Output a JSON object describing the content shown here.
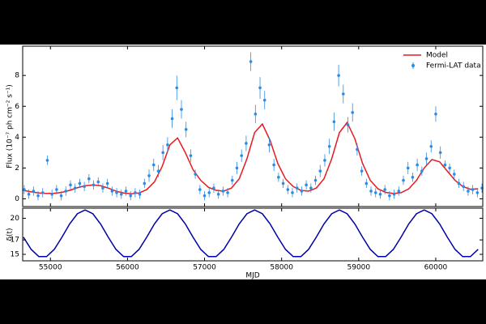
{
  "chart_data": [
    {
      "type": "line",
      "ylabel": "Flux (10⁻⁷ ph cm⁻² s⁻¹)",
      "xlim": [
        54640,
        60610
      ],
      "xticks": [
        55000,
        56000,
        57000,
        58000,
        59000,
        60000
      ],
      "show_xtick_labels": false,
      "ylim": [
        -0.5,
        9.9
      ],
      "yticks": [
        0,
        2,
        4,
        6,
        8
      ],
      "legend": "upper right",
      "series": [
        {
          "name": "Model",
          "type": "line",
          "color": "#e8191f",
          "x": [
            54650,
            54750,
            54850,
            54950,
            55050,
            55150,
            55250,
            55350,
            55450,
            55550,
            55650,
            55750,
            55850,
            55950,
            56050,
            56150,
            56250,
            56350,
            56450,
            56550,
            56650,
            56750,
            56850,
            56950,
            57050,
            57150,
            57250,
            57350,
            57450,
            57550,
            57650,
            57750,
            57850,
            57950,
            58050,
            58150,
            58250,
            58350,
            58450,
            58550,
            58650,
            58750,
            58850,
            58950,
            59050,
            59150,
            59250,
            59350,
            59450,
            59550,
            59650,
            59750,
            59850,
            59950,
            60050,
            60150,
            60250,
            60350,
            60450,
            60550
          ],
          "values": [
            0.55,
            0.45,
            0.38,
            0.35,
            0.36,
            0.42,
            0.55,
            0.72,
            0.85,
            0.9,
            0.85,
            0.7,
            0.5,
            0.38,
            0.33,
            0.38,
            0.6,
            1.1,
            2.1,
            3.5,
            3.95,
            3.0,
            1.9,
            1.2,
            0.75,
            0.55,
            0.5,
            0.7,
            1.3,
            2.6,
            4.3,
            4.85,
            3.8,
            2.3,
            1.3,
            0.8,
            0.55,
            0.5,
            0.7,
            1.3,
            2.6,
            4.3,
            4.95,
            3.9,
            2.3,
            1.2,
            0.65,
            0.42,
            0.35,
            0.4,
            0.65,
            1.2,
            2.0,
            2.55,
            2.4,
            1.8,
            1.2,
            0.8,
            0.62,
            0.65
          ]
        },
        {
          "name": "Fermi-LAT data",
          "type": "errorbar",
          "color": "#2b8ce6",
          "x": [
            54660,
            54720,
            54780,
            54840,
            54900,
            54960,
            55020,
            55080,
            55140,
            55200,
            55260,
            55320,
            55380,
            55440,
            55500,
            55560,
            55620,
            55680,
            55740,
            55800,
            55860,
            55920,
            55980,
            56040,
            56100,
            56160,
            56220,
            56280,
            56340,
            56400,
            56460,
            56520,
            56580,
            56640,
            56700,
            56760,
            56820,
            56880,
            56940,
            57000,
            57060,
            57120,
            57180,
            57240,
            57300,
            57360,
            57420,
            57480,
            57540,
            57600,
            57660,
            57720,
            57780,
            57840,
            57900,
            57960,
            58020,
            58080,
            58140,
            58200,
            58260,
            58320,
            58380,
            58440,
            58500,
            58560,
            58620,
            58680,
            58740,
            58800,
            58860,
            58920,
            58980,
            59040,
            59100,
            59160,
            59220,
            59280,
            59340,
            59400,
            59460,
            59520,
            59580,
            59640,
            59700,
            59760,
            59820,
            59880,
            59940,
            60000,
            60060,
            60120,
            60180,
            60240,
            60300,
            60360,
            60420,
            60480,
            60540,
            60600
          ],
          "values": [
            0.6,
            0.3,
            0.5,
            0.2,
            0.4,
            2.5,
            0.3,
            0.6,
            0.2,
            0.5,
            0.9,
            0.7,
            1.0,
            0.8,
            1.3,
            0.9,
            1.1,
            0.7,
            1.0,
            0.5,
            0.4,
            0.3,
            0.5,
            0.2,
            0.4,
            0.3,
            1.0,
            1.5,
            2.2,
            1.8,
            3.0,
            3.5,
            5.2,
            7.2,
            5.8,
            4.5,
            2.8,
            1.6,
            0.6,
            0.2,
            0.4,
            0.7,
            0.3,
            0.5,
            0.4,
            1.2,
            2.0,
            2.8,
            3.6,
            8.9,
            5.5,
            7.2,
            6.4,
            3.5,
            2.2,
            1.4,
            1.0,
            0.6,
            0.4,
            0.7,
            0.5,
            0.9,
            0.7,
            1.2,
            1.8,
            2.5,
            3.4,
            5.0,
            8.0,
            6.8,
            4.8,
            5.6,
            3.2,
            1.8,
            1.0,
            0.5,
            0.4,
            0.3,
            0.6,
            0.2,
            0.3,
            0.5,
            1.2,
            2.0,
            1.4,
            2.2,
            1.8,
            2.6,
            3.4,
            5.5,
            3.0,
            2.2,
            2.0,
            1.6,
            1.0,
            0.8,
            0.5,
            0.6,
            0.4,
            0.7
          ],
          "errors": [
            0.3,
            0.3,
            0.3,
            0.3,
            0.3,
            0.3,
            0.3,
            0.3,
            0.3,
            0.3,
            0.3,
            0.3,
            0.3,
            0.3,
            0.3,
            0.3,
            0.3,
            0.3,
            0.3,
            0.3,
            0.3,
            0.3,
            0.3,
            0.3,
            0.3,
            0.3,
            0.3,
            0.4,
            0.4,
            0.4,
            0.5,
            0.5,
            0.6,
            0.8,
            0.6,
            0.5,
            0.4,
            0.3,
            0.3,
            0.3,
            0.3,
            0.3,
            0.3,
            0.3,
            0.3,
            0.3,
            0.4,
            0.4,
            0.5,
            0.6,
            0.6,
            0.7,
            0.6,
            0.5,
            0.4,
            0.3,
            0.3,
            0.3,
            0.3,
            0.3,
            0.3,
            0.3,
            0.3,
            0.3,
            0.4,
            0.4,
            0.5,
            0.6,
            0.7,
            0.6,
            0.5,
            0.6,
            0.4,
            0.3,
            0.3,
            0.3,
            0.3,
            0.3,
            0.3,
            0.3,
            0.3,
            0.3,
            0.3,
            0.4,
            0.3,
            0.4,
            0.3,
            0.4,
            0.4,
            0.5,
            0.4,
            0.3,
            0.3,
            0.3,
            0.3,
            0.3,
            0.3,
            0.3,
            0.3,
            0.3
          ]
        }
      ]
    },
    {
      "type": "line",
      "ylabel": "δ(t)",
      "xlabel": "MJD",
      "xlim": [
        54640,
        60610
      ],
      "xticks": [
        55000,
        56000,
        57000,
        58000,
        59000,
        60000
      ],
      "show_xtick_labels": true,
      "ylim": [
        14.1,
        21.4
      ],
      "yticks": [
        15,
        17,
        20
      ],
      "series": [
        {
          "type": "line",
          "color": "#0000aa",
          "x": [
            54650,
            54750,
            54850,
            54950,
            55050,
            55150,
            55250,
            55350,
            55450,
            55550,
            55650,
            55750,
            55850,
            55950,
            56050,
            56150,
            56250,
            56350,
            56450,
            56550,
            56650,
            56750,
            56850,
            56950,
            57050,
            57150,
            57250,
            57350,
            57450,
            57550,
            57650,
            57750,
            57850,
            57950,
            58050,
            58150,
            58250,
            58350,
            58450,
            58550,
            58650,
            58750,
            58850,
            58950,
            59050,
            59150,
            59250,
            59350,
            59450,
            59550,
            59650,
            59750,
            59850,
            59950,
            60050,
            60150,
            60250,
            60350,
            60450,
            60550
          ],
          "values": [
            17.38,
            15.69,
            14.69,
            14.69,
            15.69,
            17.38,
            19.22,
            20.63,
            21.15,
            20.63,
            19.22,
            17.38,
            15.69,
            14.69,
            14.69,
            15.69,
            17.38,
            19.22,
            20.63,
            21.15,
            20.63,
            19.22,
            17.38,
            15.69,
            14.69,
            14.69,
            15.69,
            17.38,
            19.22,
            20.63,
            21.15,
            20.63,
            19.22,
            17.38,
            15.69,
            14.69,
            14.69,
            15.69,
            17.38,
            19.22,
            20.63,
            21.15,
            20.63,
            19.22,
            17.38,
            15.69,
            14.69,
            14.69,
            15.69,
            17.38,
            19.22,
            20.63,
            21.15,
            20.63,
            19.22,
            17.38,
            15.69,
            14.69,
            14.69,
            15.69
          ]
        }
      ]
    }
  ]
}
